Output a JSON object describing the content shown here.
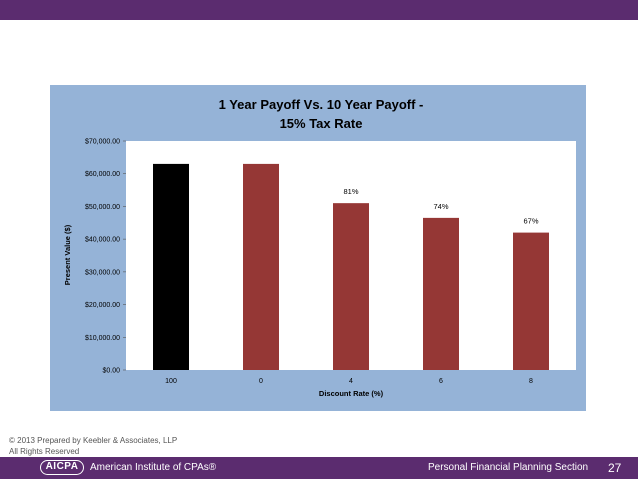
{
  "header": {
    "bar_color": "#5b2c6f"
  },
  "chart_data": {
    "type": "bar",
    "title_line1": "1 Year Payoff Vs. 10 Year Payoff -",
    "title_line2": "15% Tax Rate",
    "xlabel": "Discount Rate (%)",
    "ylabel": "Present Value ($)",
    "ylim": [
      0,
      70000
    ],
    "yticks": [
      0,
      10000,
      20000,
      30000,
      40000,
      50000,
      60000,
      70000
    ],
    "ytick_labels": [
      "$0.00",
      "$10,000.00",
      "$20,000.00",
      "$30,000.00",
      "$40,000.00",
      "$50,000.00",
      "$60,000.00",
      "$70,000.00"
    ],
    "categories": [
      "100",
      "0",
      "4",
      "6",
      "8"
    ],
    "values": [
      63000,
      63000,
      51000,
      46500,
      42000
    ],
    "data_labels": [
      "",
      "",
      "81%",
      "74%",
      "67%"
    ],
    "bar_colors": [
      "#000000",
      "#953735",
      "#953735",
      "#953735",
      "#953735"
    ],
    "plot_background": "#ffffff",
    "panel_background": "#95b3d7",
    "grid": false
  },
  "footer": {
    "copyright_line1": "© 2013 Prepared by Keebler & Associates, LLP",
    "copyright_line2": "All Rights Reserved",
    "logo_text": "AICPA",
    "org_name": "American Institute of CPAs®",
    "section_name": "Personal Financial Planning Section",
    "page_number": "27"
  }
}
